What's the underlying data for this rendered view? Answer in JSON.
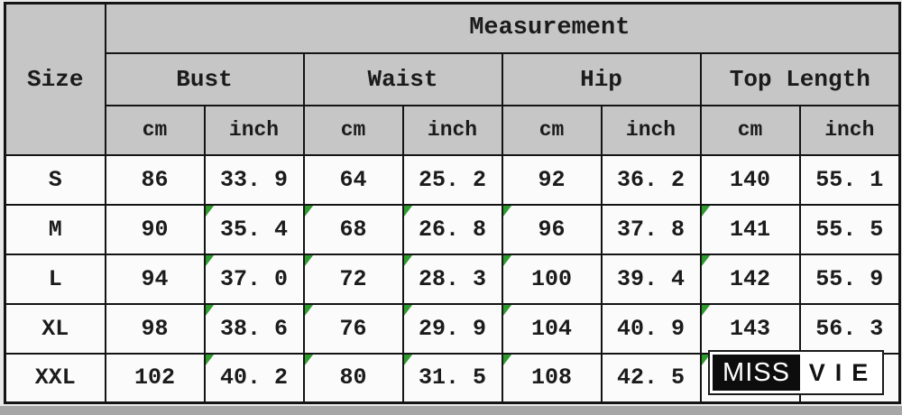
{
  "colors": {
    "header_bg": "#c6c6c6",
    "cell_bg": "#fbfbfb",
    "border": "#141414",
    "flag_green": "#2f9b2f",
    "bottom_strip": "#a6a6a6",
    "logo_black": "#0d0d0d",
    "logo_white": "#ffffff"
  },
  "table": {
    "corner_label": "Size",
    "measurement_label": "Measurement",
    "groups": [
      "Bust",
      "Waist",
      "Hip",
      "Top Length"
    ],
    "units": {
      "cm": "cm",
      "inch": "inch"
    },
    "rows": [
      {
        "size": "S",
        "values": [
          "86",
          "33. 9",
          "64",
          "25. 2",
          "92",
          "36. 2",
          "140",
          "55. 1"
        ],
        "flags": []
      },
      {
        "size": "M",
        "values": [
          "90",
          "35. 4",
          "68",
          "26. 8",
          "96",
          "37. 8",
          "141",
          "55. 5"
        ],
        "flags": [
          1,
          2,
          3,
          4,
          6
        ]
      },
      {
        "size": "L",
        "values": [
          "94",
          "37. 0",
          "72",
          "28. 3",
          "100",
          "39. 4",
          "142",
          "55. 9"
        ],
        "flags": [
          1,
          2,
          3,
          4,
          6
        ]
      },
      {
        "size": "XL",
        "values": [
          "98",
          "38. 6",
          "76",
          "29. 9",
          "104",
          "40. 9",
          "143",
          "56. 3"
        ],
        "flags": [
          1,
          2,
          3,
          4,
          6
        ]
      },
      {
        "size": "XXL",
        "values": [
          "102",
          "40. 2",
          "80",
          "31. 5",
          "108",
          "42. 5",
          "",
          ""
        ],
        "flags": [
          1,
          2,
          3,
          4,
          6
        ]
      }
    ]
  },
  "logo": {
    "left_text": "MISS",
    "right_text": "VIE"
  },
  "chart_data": {
    "type": "table",
    "title": "Measurement",
    "row_header": "Size",
    "column_groups": [
      "Bust",
      "Waist",
      "Hip",
      "Top Length"
    ],
    "column_units": [
      "cm",
      "inch"
    ],
    "columns": [
      "Bust cm",
      "Bust inch",
      "Waist cm",
      "Waist inch",
      "Hip cm",
      "Hip inch",
      "Top Length cm",
      "Top Length inch"
    ],
    "rows": [
      {
        "size": "S",
        "bust_cm": 86,
        "bust_inch": 33.9,
        "waist_cm": 64,
        "waist_inch": 25.2,
        "hip_cm": 92,
        "hip_inch": 36.2,
        "top_length_cm": 140,
        "top_length_inch": 55.1
      },
      {
        "size": "M",
        "bust_cm": 90,
        "bust_inch": 35.4,
        "waist_cm": 68,
        "waist_inch": 26.8,
        "hip_cm": 96,
        "hip_inch": 37.8,
        "top_length_cm": 141,
        "top_length_inch": 55.5
      },
      {
        "size": "L",
        "bust_cm": 94,
        "bust_inch": 37.0,
        "waist_cm": 72,
        "waist_inch": 28.3,
        "hip_cm": 100,
        "hip_inch": 39.4,
        "top_length_cm": 142,
        "top_length_inch": 55.9
      },
      {
        "size": "XL",
        "bust_cm": 98,
        "bust_inch": 38.6,
        "waist_cm": 76,
        "waist_inch": 29.9,
        "hip_cm": 104,
        "hip_inch": 40.9,
        "top_length_cm": 143,
        "top_length_inch": 56.3
      },
      {
        "size": "XXL",
        "bust_cm": 102,
        "bust_inch": 40.2,
        "waist_cm": 80,
        "waist_inch": 31.5,
        "hip_cm": 108,
        "hip_inch": 42.5,
        "top_length_cm": null,
        "top_length_inch": null
      }
    ],
    "notes": "XXL Top Length values are obscured by the MISS VIE logo watermark"
  }
}
